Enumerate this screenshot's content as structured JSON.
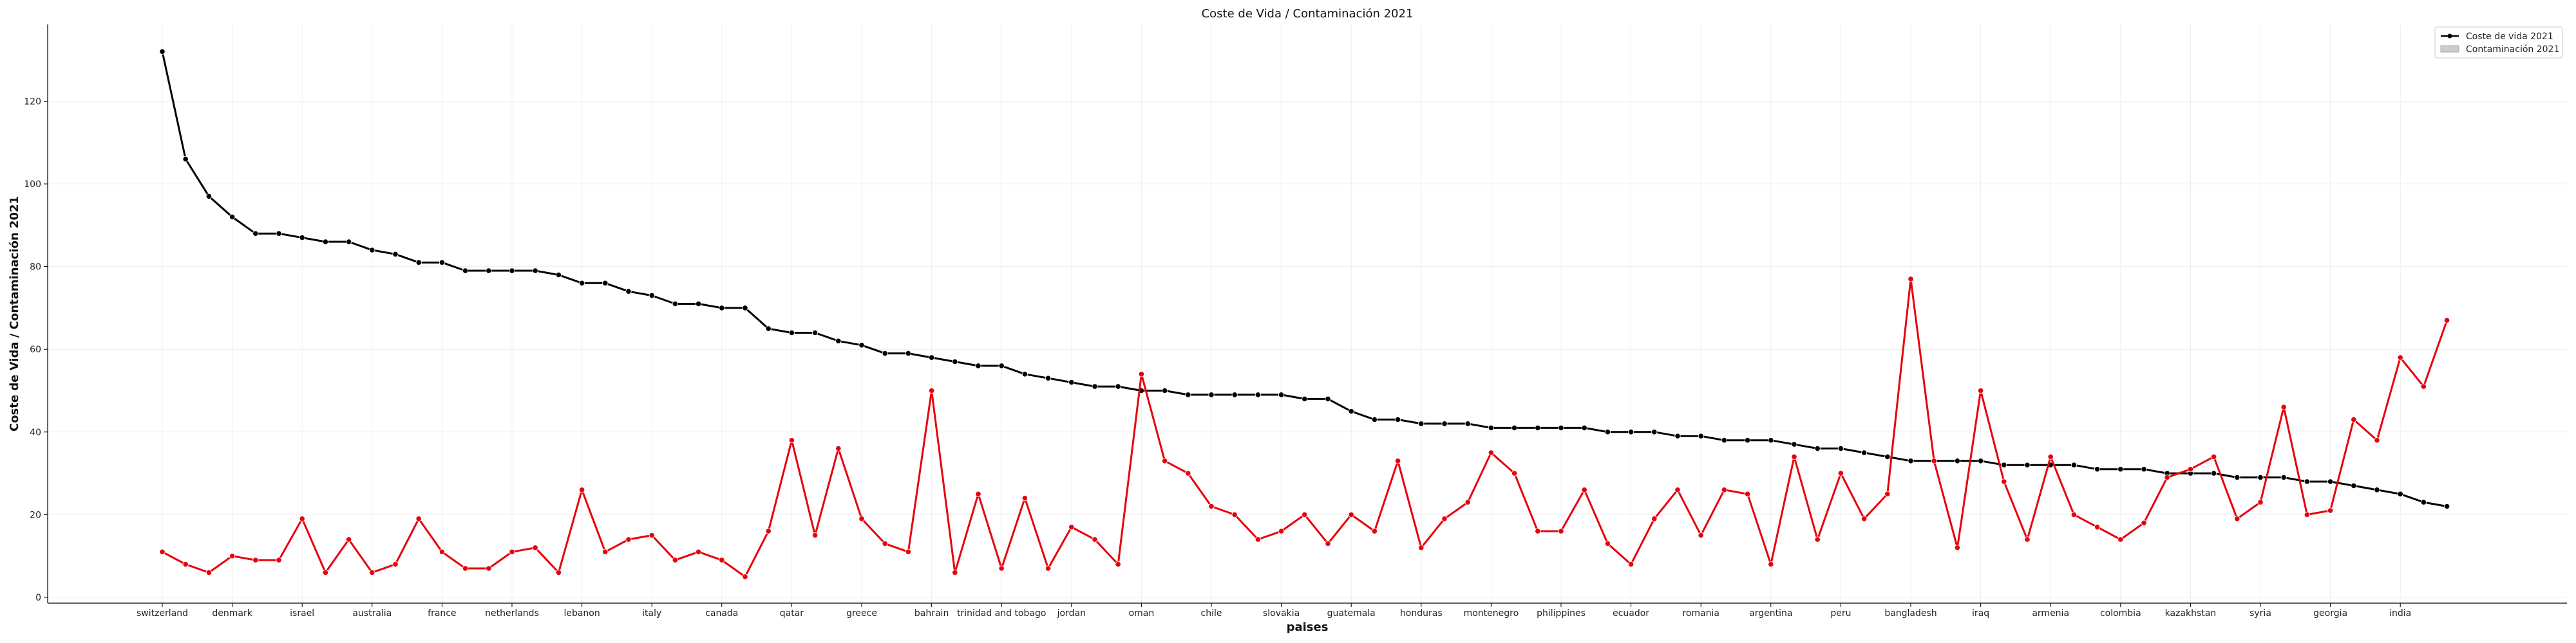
{
  "chart_data": {
    "type": "line",
    "title": "Coste de Vida / Contaminación 2021",
    "xlabel": "paises",
    "ylabel": "Coste de Vida / Contaminación 2021",
    "ylim": [
      -2,
      138
    ],
    "yticks": [
      0,
      20,
      40,
      60,
      80,
      100,
      120
    ],
    "grid": true,
    "legend_position": "top-right",
    "tick_labels": [
      "switzerland",
      "denmark",
      "israel",
      "australia",
      "france",
      "netherlands",
      "lebanon",
      "italy",
      "canada",
      "qatar",
      "greece",
      "bahrain",
      "trinidad and tobago",
      "jordan",
      "oman",
      "chile",
      "slovakia",
      "guatemala",
      "honduras",
      "montenegro",
      "philippines",
      "ecuador",
      "romania",
      "argentina",
      "peru",
      "bangladesh",
      "iraq",
      "armenia",
      "colombia",
      "kazakhstan",
      "syria",
      "georgia",
      "india"
    ],
    "series": [
      {
        "name": "Coste de vida 2021",
        "legend_marker": "line",
        "color": "#000000",
        "values": [
          132,
          106,
          97,
          92,
          88,
          88,
          87,
          86,
          86,
          84,
          83,
          81,
          81,
          79,
          79,
          79,
          79,
          78,
          76,
          76,
          74,
          73,
          71,
          71,
          70,
          70,
          65,
          64,
          64,
          62,
          61,
          59,
          59,
          58,
          57,
          56,
          56,
          54,
          53,
          52,
          51,
          51,
          50,
          50,
          49,
          49,
          49,
          49,
          49,
          48,
          48,
          45,
          43,
          43,
          42,
          42,
          42,
          41,
          41,
          41,
          41,
          41,
          40,
          40,
          40,
          39,
          39,
          38,
          38,
          38,
          37,
          36,
          36,
          35,
          34,
          33,
          33,
          33,
          33,
          32,
          32,
          32,
          32,
          31,
          31,
          31,
          30,
          30,
          30,
          29,
          29,
          29,
          28,
          28,
          27,
          26,
          25,
          23,
          22
        ]
      },
      {
        "name": "Contaminación 2021",
        "legend_marker": "patch",
        "color": "#e8000b",
        "values": [
          11,
          8,
          6,
          10,
          9,
          9,
          19,
          6,
          14,
          6,
          8,
          19,
          11,
          7,
          7,
          11,
          12,
          6,
          26,
          11,
          14,
          15,
          9,
          11,
          9,
          5,
          16,
          38,
          15,
          36,
          19,
          13,
          11,
          50,
          6,
          25,
          7,
          24,
          7,
          17,
          14,
          8,
          54,
          33,
          30,
          22,
          20,
          14,
          16,
          20,
          13,
          20,
          16,
          33,
          12,
          19,
          23,
          35,
          30,
          16,
          16,
          26,
          13,
          8,
          19,
          26,
          15,
          26,
          25,
          8,
          34,
          14,
          30,
          19,
          25,
          77,
          33,
          12,
          50,
          28,
          14,
          34,
          20,
          17,
          14,
          18,
          29,
          31,
          34,
          19,
          23,
          46,
          20,
          21,
          43,
          38,
          58,
          51,
          67
        ]
      }
    ]
  },
  "legend_colors": {
    "patch_fill": "#cccccc",
    "patch_edge": "#999999"
  }
}
